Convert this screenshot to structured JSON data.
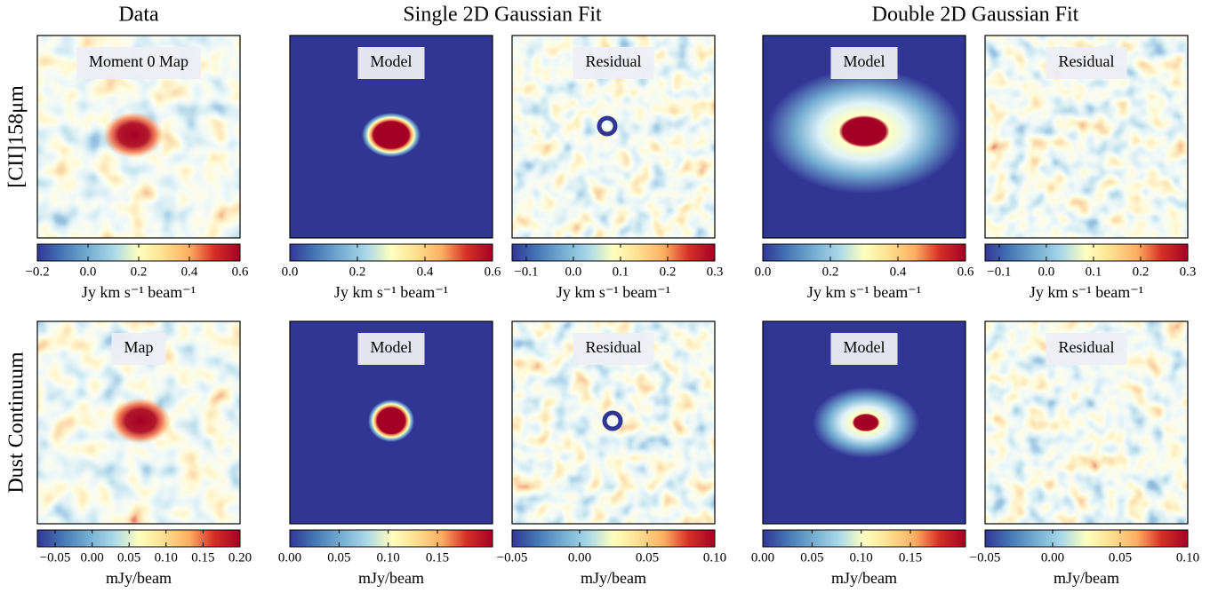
{
  "column_headers": [
    "Data",
    "Single 2D Gaussian Fit",
    "Double 2D Gaussian Fit"
  ],
  "rows": [
    {
      "label": "[CII]158μm",
      "panels": [
        {
          "label": "Moment 0 Map",
          "colorbar": {
            "label": "Jy km s⁻¹ beam⁻¹",
            "xlim": [
              -0.2,
              0.6
            ],
            "xticks": [
              {
                "value": -0.2,
                "label": "−0.2"
              },
              {
                "value": 0,
                "label": "0.0"
              },
              0.2,
              0.4,
              0.6
            ]
          }
        },
        {
          "label": "Model",
          "colorbar": {
            "label": "Jy km s⁻¹ beam⁻¹",
            "xlim": [
              0,
              0.6
            ],
            "xticks": [
              {
                "value": 0,
                "label": "0.0"
              },
              0.2,
              0.4,
              0.6
            ]
          }
        },
        {
          "label": "Residual",
          "colorbar": {
            "label": "Jy km s⁻¹ beam⁻¹",
            "xlim": [
              -0.13,
              0.3
            ],
            "xticks": [
              {
                "value": -0.1,
                "label": "−0.1"
              },
              {
                "value": 0,
                "label": "0.0"
              },
              0.1,
              0.2,
              0.3
            ]
          }
        },
        {
          "label": "Model",
          "colorbar": {
            "label": "Jy km s⁻¹ beam⁻¹",
            "xlim": [
              0,
              0.6
            ],
            "xticks": [
              {
                "value": 0,
                "label": "0.0"
              },
              0.2,
              0.4,
              0.6
            ]
          }
        },
        {
          "label": "Residual",
          "colorbar": {
            "label": "Jy km s⁻¹ beam⁻¹",
            "xlim": [
              -0.13,
              0.3
            ],
            "xticks": [
              {
                "value": -0.1,
                "label": "−0.1"
              },
              {
                "value": 0,
                "label": "0.0"
              },
              0.1,
              0.2,
              0.3
            ]
          }
        }
      ]
    },
    {
      "label": "Dust Continuum",
      "panels": [
        {
          "label": "Map",
          "colorbar": {
            "label": "mJy/beam",
            "xlim": [
              -0.074,
              0.2
            ],
            "xticks": [
              {
                "value": -0.05,
                "label": "−0.05"
              },
              {
                "value": 0,
                "label": "0.00"
              },
              0.05,
              {
                "value": 0.1,
                "label": "0.10"
              },
              0.15,
              {
                "value": 0.2,
                "label": "0.20"
              }
            ]
          }
        },
        {
          "label": "Model",
          "colorbar": {
            "label": "mJy/beam",
            "xlim": [
              0,
              0.206
            ],
            "xticks": [
              {
                "value": 0,
                "label": "0.00"
              },
              0.05,
              {
                "value": 0.1,
                "label": "0.10"
              },
              0.15
            ]
          }
        },
        {
          "label": "Residual",
          "colorbar": {
            "label": "mJy/beam",
            "xlim": [
              -0.05,
              0.1
            ],
            "xticks": [
              {
                "value": -0.05,
                "label": "−0.05"
              },
              {
                "value": 0,
                "label": "0.00"
              },
              0.05,
              {
                "value": 0.1,
                "label": "0.10"
              }
            ]
          }
        },
        {
          "label": "Model",
          "colorbar": {
            "label": "mJy/beam",
            "xlim": [
              0,
              0.206
            ],
            "xticks": [
              {
                "value": 0,
                "label": "0.00"
              },
              0.05,
              {
                "value": 0.1,
                "label": "0.10"
              },
              0.15
            ]
          }
        },
        {
          "label": "Residual",
          "colorbar": {
            "label": "mJy/beam",
            "xlim": [
              -0.05,
              0.1
            ],
            "xticks": [
              {
                "value": -0.05,
                "label": "−0.05"
              },
              {
                "value": 0,
                "label": "0.00"
              },
              0.05,
              {
                "value": 0.1,
                "label": "0.10"
              }
            ]
          }
        }
      ]
    }
  ]
}
